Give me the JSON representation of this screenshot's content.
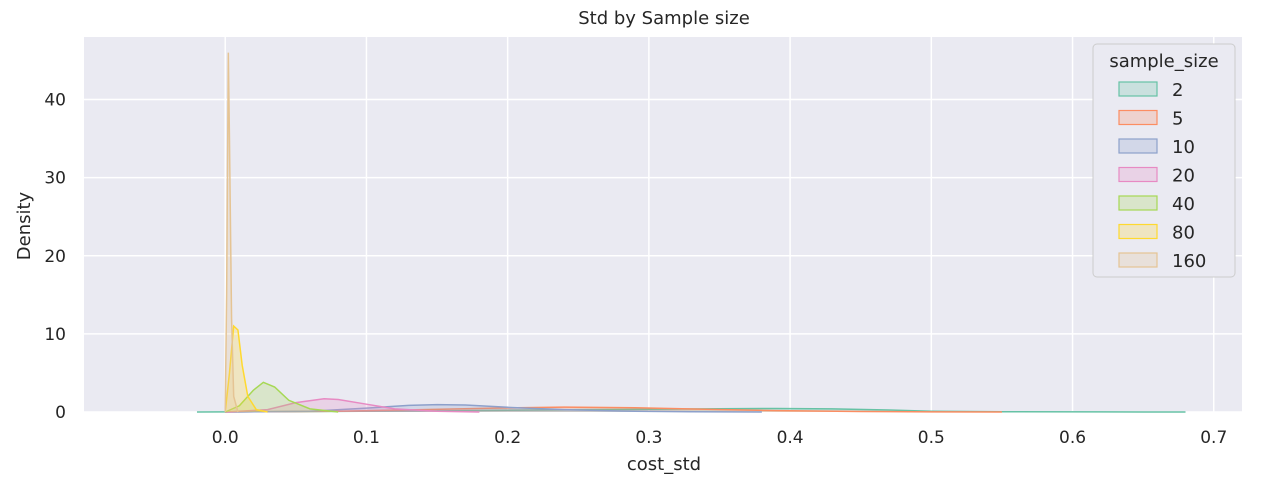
{
  "chart_data": {
    "type": "area",
    "title": "Std by Sample size",
    "xlabel": "cost_std",
    "ylabel": "Density",
    "xlim": [
      -0.1,
      0.72
    ],
    "ylim": [
      0,
      48
    ],
    "x_ticks": [
      0.0,
      0.1,
      0.2,
      0.3,
      0.4,
      0.5,
      0.6,
      0.7
    ],
    "x_tick_labels": [
      "0.0",
      "0.1",
      "0.2",
      "0.3",
      "0.4",
      "0.5",
      "0.6",
      "0.7"
    ],
    "y_ticks": [
      0,
      10,
      20,
      30,
      40
    ],
    "y_tick_labels": [
      "0",
      "10",
      "20",
      "30",
      "40"
    ],
    "grid": true,
    "legend": {
      "title": "sample_size",
      "position": "top-right"
    },
    "series": [
      {
        "name": "2",
        "color": "#66c2a5",
        "points": [
          [
            -0.02,
            0
          ],
          [
            0.05,
            0.05
          ],
          [
            0.15,
            0.15
          ],
          [
            0.25,
            0.3
          ],
          [
            0.3,
            0.35
          ],
          [
            0.35,
            0.42
          ],
          [
            0.39,
            0.45
          ],
          [
            0.43,
            0.4
          ],
          [
            0.47,
            0.25
          ],
          [
            0.5,
            0.1
          ],
          [
            0.55,
            0.03
          ],
          [
            0.62,
            0.01
          ],
          [
            0.68,
            0
          ]
        ]
      },
      {
        "name": "5",
        "color": "#fc8d62",
        "points": [
          [
            0.0,
            0
          ],
          [
            0.08,
            0.1
          ],
          [
            0.14,
            0.3
          ],
          [
            0.19,
            0.5
          ],
          [
            0.24,
            0.62
          ],
          [
            0.29,
            0.55
          ],
          [
            0.34,
            0.35
          ],
          [
            0.39,
            0.18
          ],
          [
            0.45,
            0.06
          ],
          [
            0.5,
            0.02
          ],
          [
            0.55,
            0
          ]
        ]
      },
      {
        "name": "10",
        "color": "#8da0cb",
        "points": [
          [
            0.0,
            0
          ],
          [
            0.06,
            0.1
          ],
          [
            0.1,
            0.5
          ],
          [
            0.13,
            0.85
          ],
          [
            0.15,
            0.95
          ],
          [
            0.17,
            0.9
          ],
          [
            0.2,
            0.6
          ],
          [
            0.24,
            0.3
          ],
          [
            0.28,
            0.12
          ],
          [
            0.33,
            0.03
          ],
          [
            0.38,
            0
          ]
        ]
      },
      {
        "name": "20",
        "color": "#e78ac3",
        "points": [
          [
            0.0,
            0
          ],
          [
            0.03,
            0.3
          ],
          [
            0.05,
            1.2
          ],
          [
            0.07,
            1.7
          ],
          [
            0.08,
            1.6
          ],
          [
            0.1,
            1.0
          ],
          [
            0.12,
            0.4
          ],
          [
            0.15,
            0.1
          ],
          [
            0.18,
            0
          ]
        ]
      },
      {
        "name": "40",
        "color": "#a6d854",
        "points": [
          [
            0.0,
            0
          ],
          [
            0.01,
            0.8
          ],
          [
            0.02,
            2.8
          ],
          [
            0.027,
            3.8
          ],
          [
            0.035,
            3.2
          ],
          [
            0.045,
            1.5
          ],
          [
            0.06,
            0.4
          ],
          [
            0.08,
            0
          ]
        ]
      },
      {
        "name": "80",
        "color": "#ffd92f",
        "points": [
          [
            0.0,
            0
          ],
          [
            0.003,
            5
          ],
          [
            0.006,
            11
          ],
          [
            0.009,
            10.5
          ],
          [
            0.012,
            6
          ],
          [
            0.016,
            2
          ],
          [
            0.022,
            0.3
          ],
          [
            0.03,
            0
          ]
        ]
      },
      {
        "name": "160",
        "color": "#e5c494",
        "points": [
          [
            0.0,
            0
          ],
          [
            0.001,
            15
          ],
          [
            0.0022,
            46
          ],
          [
            0.003,
            35
          ],
          [
            0.0045,
            12
          ],
          [
            0.006,
            2
          ],
          [
            0.009,
            0
          ]
        ]
      }
    ]
  }
}
